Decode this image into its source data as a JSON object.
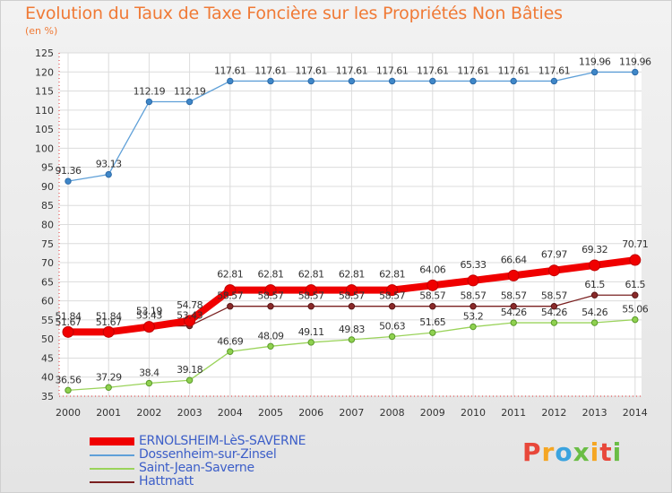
{
  "title": "Evolution du Taux de Taxe Foncière sur les Propriétés Non Bâties",
  "unit_label": "(en %)",
  "logo": {
    "letters": [
      "P",
      "r",
      "o",
      "x",
      "i",
      "t",
      "i"
    ],
    "colors": [
      "#e8473a",
      "#f5a623",
      "#3aa3df",
      "#6abd45",
      "#f5a623",
      "#e8473a",
      "#6abd45"
    ]
  },
  "chart_data": {
    "type": "line",
    "title": "Evolution du Taux de Taxe Foncière sur les Propriétés Non Bâties",
    "ylabel": "(en %)",
    "xlabel": "",
    "x": [
      "2000",
      "2001",
      "2002",
      "2003",
      "2004",
      "2005",
      "2006",
      "2007",
      "2008",
      "2009",
      "2010",
      "2011",
      "2012",
      "2013",
      "2014"
    ],
    "ylim": [
      35,
      125
    ],
    "yticks": [
      35,
      40,
      45,
      50,
      55,
      60,
      65,
      70,
      75,
      80,
      85,
      90,
      95,
      100,
      105,
      110,
      115,
      120,
      125
    ],
    "grid": true,
    "legend_position": "bottom-left",
    "series": [
      {
        "name": "ERNOLSHEIM-LèS-SAVERNE",
        "color": "#f00000",
        "values": [
          51.84,
          51.84,
          53.19,
          54.78,
          62.81,
          62.81,
          62.81,
          62.81,
          62.81,
          64.06,
          65.33,
          66.64,
          67.97,
          69.32,
          70.71
        ],
        "labels": [
          "51.84",
          "51.84",
          "53.19",
          "54.78",
          "62.81",
          "62.81",
          "62.81",
          "62.81",
          "62.81",
          "64.06",
          "65.33",
          "66.64",
          "67.97",
          "69.32",
          "70.71"
        ]
      },
      {
        "name": "Dossenheim-sur-Zinsel",
        "color": "#5fa0d8",
        "values": [
          91.36,
          93.13,
          112.19,
          112.19,
          117.61,
          117.61,
          117.61,
          117.61,
          117.61,
          117.61,
          117.61,
          117.61,
          117.61,
          119.96,
          119.96
        ],
        "labels": [
          "91.36",
          "93.13",
          "112.19",
          "112.19",
          "117.61",
          "117.61",
          "117.61",
          "117.61",
          "117.61",
          "117.61",
          "117.61",
          "117.61",
          "117.61",
          "119.96",
          "119.96"
        ]
      },
      {
        "name": "Saint-Jean-Saverne",
        "color": "#9ad35a",
        "values": [
          36.56,
          37.29,
          38.4,
          39.18,
          46.69,
          48.09,
          49.11,
          49.83,
          50.63,
          51.65,
          53.2,
          54.26,
          54.26,
          54.26,
          55.06
        ],
        "labels": [
          "36.56",
          "37.29",
          "38.4",
          "39.18",
          "46.69",
          "48.09",
          "49.11",
          "49.83",
          "50.63",
          "51.65",
          "53.2",
          "54.26",
          "54.26",
          "54.26",
          "55.06"
        ]
      },
      {
        "name": "Hattmatt",
        "color": "#7a2020",
        "values": [
          51.67,
          51.67,
          53.43,
          53.43,
          58.57,
          58.57,
          58.57,
          58.57,
          58.57,
          58.57,
          58.57,
          58.57,
          58.57,
          61.5,
          61.5
        ],
        "labels": [
          "51.67",
          "51.67",
          "53.43",
          "53.43",
          "58.57",
          "58.57",
          "58.57",
          "58.57",
          "58.57",
          "58.57",
          "58.57",
          "58.57",
          "58.57",
          "61.5",
          "61.5"
        ]
      }
    ]
  }
}
